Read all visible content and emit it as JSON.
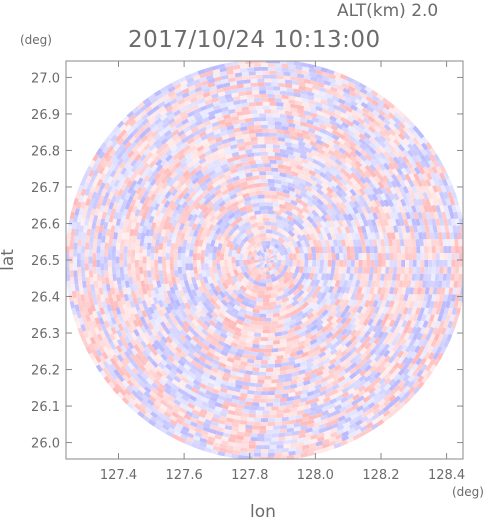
{
  "header": {
    "altitude_label": "ALT(km) 2.0",
    "timestamp": "2017/10/24 10:13:00"
  },
  "chart_data": {
    "type": "heatmap",
    "title": "2017/10/24 10:13:00",
    "subtitle": "ALT(km) 2.0",
    "xlabel": "lon",
    "ylabel": "lat",
    "x_unit": "(deg)",
    "y_unit": "(deg)",
    "xlim": [
      127.24,
      128.45
    ],
    "ylim": [
      25.955,
      27.045
    ],
    "x_ticks": [
      "127.4",
      "127.6",
      "127.8",
      "128.0",
      "128.2",
      "128.4"
    ],
    "x_tick_values": [
      127.4,
      127.6,
      127.8,
      128.0,
      128.2,
      128.4
    ],
    "y_ticks": [
      "26.0",
      "26.1",
      "26.2",
      "26.3",
      "26.4",
      "26.5",
      "26.6",
      "26.7",
      "26.8",
      "26.9",
      "27.0"
    ],
    "y_tick_values": [
      26.0,
      26.1,
      26.2,
      26.3,
      26.4,
      26.5,
      26.6,
      26.7,
      26.8,
      26.9,
      27.0
    ],
    "radar_center": [
      127.85,
      26.5
    ],
    "radar_radius_deg_lon": 0.615,
    "radar_radius_deg_lat": 0.55,
    "colors": {
      "positive": "#ff9a9a",
      "negative": "#9a9aff",
      "neutral": "#ffffff",
      "axis": "#888888"
    },
    "grid": false
  }
}
